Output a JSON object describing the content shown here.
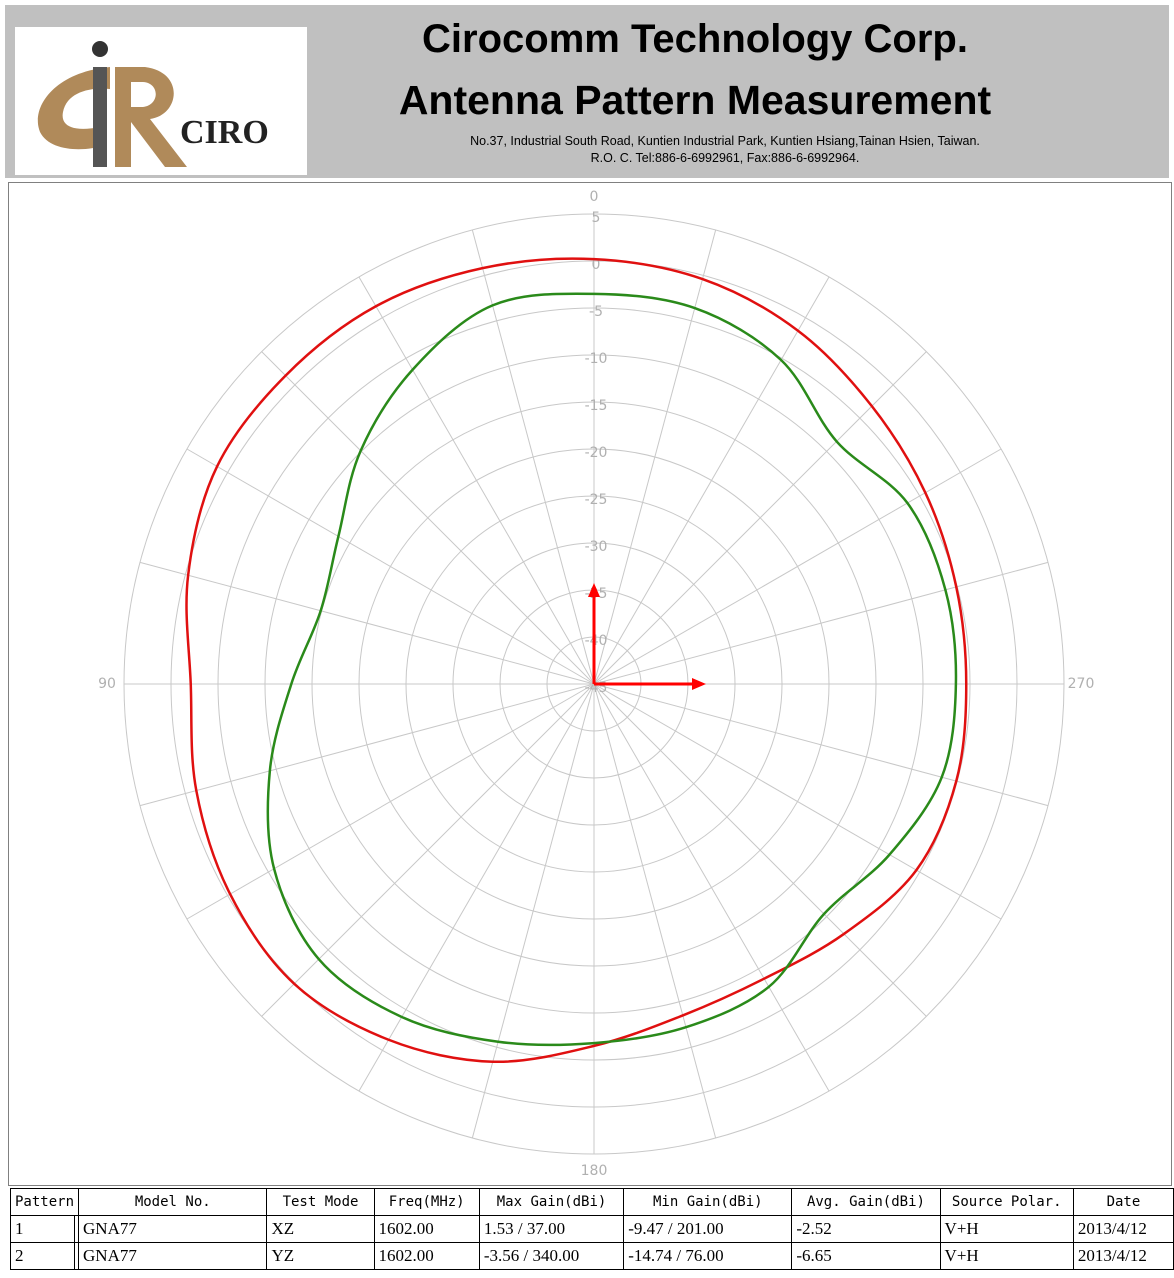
{
  "header": {
    "logo_text": "CIRO",
    "title": "Cirocomm Technology Corp.",
    "subtitle": "Antenna Pattern Measurement",
    "address": [
      "No.37, Industrial South Road, Kuntien Industrial Park, Kuntien Hsiang,Tainan Hsien, Taiwan.",
      "R.O. C. Tel:886-6-6992961, Fax:886-6-6992964."
    ]
  },
  "chart_data": {
    "type": "polar",
    "theta": [
      0,
      15,
      30,
      45,
      60,
      75,
      90,
      105,
      120,
      135,
      150,
      165,
      180,
      195,
      210,
      225,
      240,
      255,
      270,
      285,
      300,
      315,
      330,
      345
    ],
    "series": [
      {
        "color": "#e01010",
        "values": [
          0.2,
          0.8,
          1.4,
          1.4,
          1.3,
          -0.3,
          -2.1,
          -1.2,
          -0.3,
          0.1,
          -1.3,
          -3.4,
          -6.5,
          -8.5,
          -8.8,
          -7.4,
          -5.4,
          -5.1,
          -5.4,
          -5.1,
          -4.3,
          -3.2,
          -1.6,
          -0.4
        ]
      },
      {
        "color": "#2a8a1a",
        "values": [
          -3.5,
          -3.3,
          -6.4,
          -9.9,
          -13.6,
          -14.9,
          -12.8,
          -9.3,
          -5.7,
          -3.6,
          -4.1,
          -5.6,
          -6.8,
          -7.2,
          -7.8,
          -10.4,
          -8.7,
          -6.7,
          -6.5,
          -6.3,
          -6.5,
          -8.5,
          -5.2,
          -3.6
        ]
      }
    ],
    "rlim": [
      -45,
      5
    ],
    "rticks": [
      5,
      0,
      -5,
      -10,
      -15,
      -20,
      -25,
      -30,
      -35,
      -40,
      -45
    ],
    "thetaticks": [
      0,
      90,
      180,
      270
    ],
    "theta_grid_step": 15,
    "direction": "counterclockwise"
  },
  "table": {
    "header": [
      "Pattern",
      "Model No.",
      "Test Mode",
      "Freq(MHz)",
      "Max Gain(dBi)",
      "Min Gain(dBi)",
      "Avg. Gain(dBi)",
      "Source Polar.",
      "Date"
    ],
    "rows": [
      [
        "1",
        "GNA77",
        "XZ",
        "1602.00",
        "1.53 / 37.00",
        "-9.47 / 201.00",
        "-2.52",
        "V+H",
        "2013/4/12"
      ],
      [
        "2",
        "GNA77",
        "YZ",
        "1602.00",
        "-3.56 / 340.00",
        "-14.74 / 76.00",
        "-6.65",
        "V+H",
        "2013/4/12"
      ]
    ]
  }
}
